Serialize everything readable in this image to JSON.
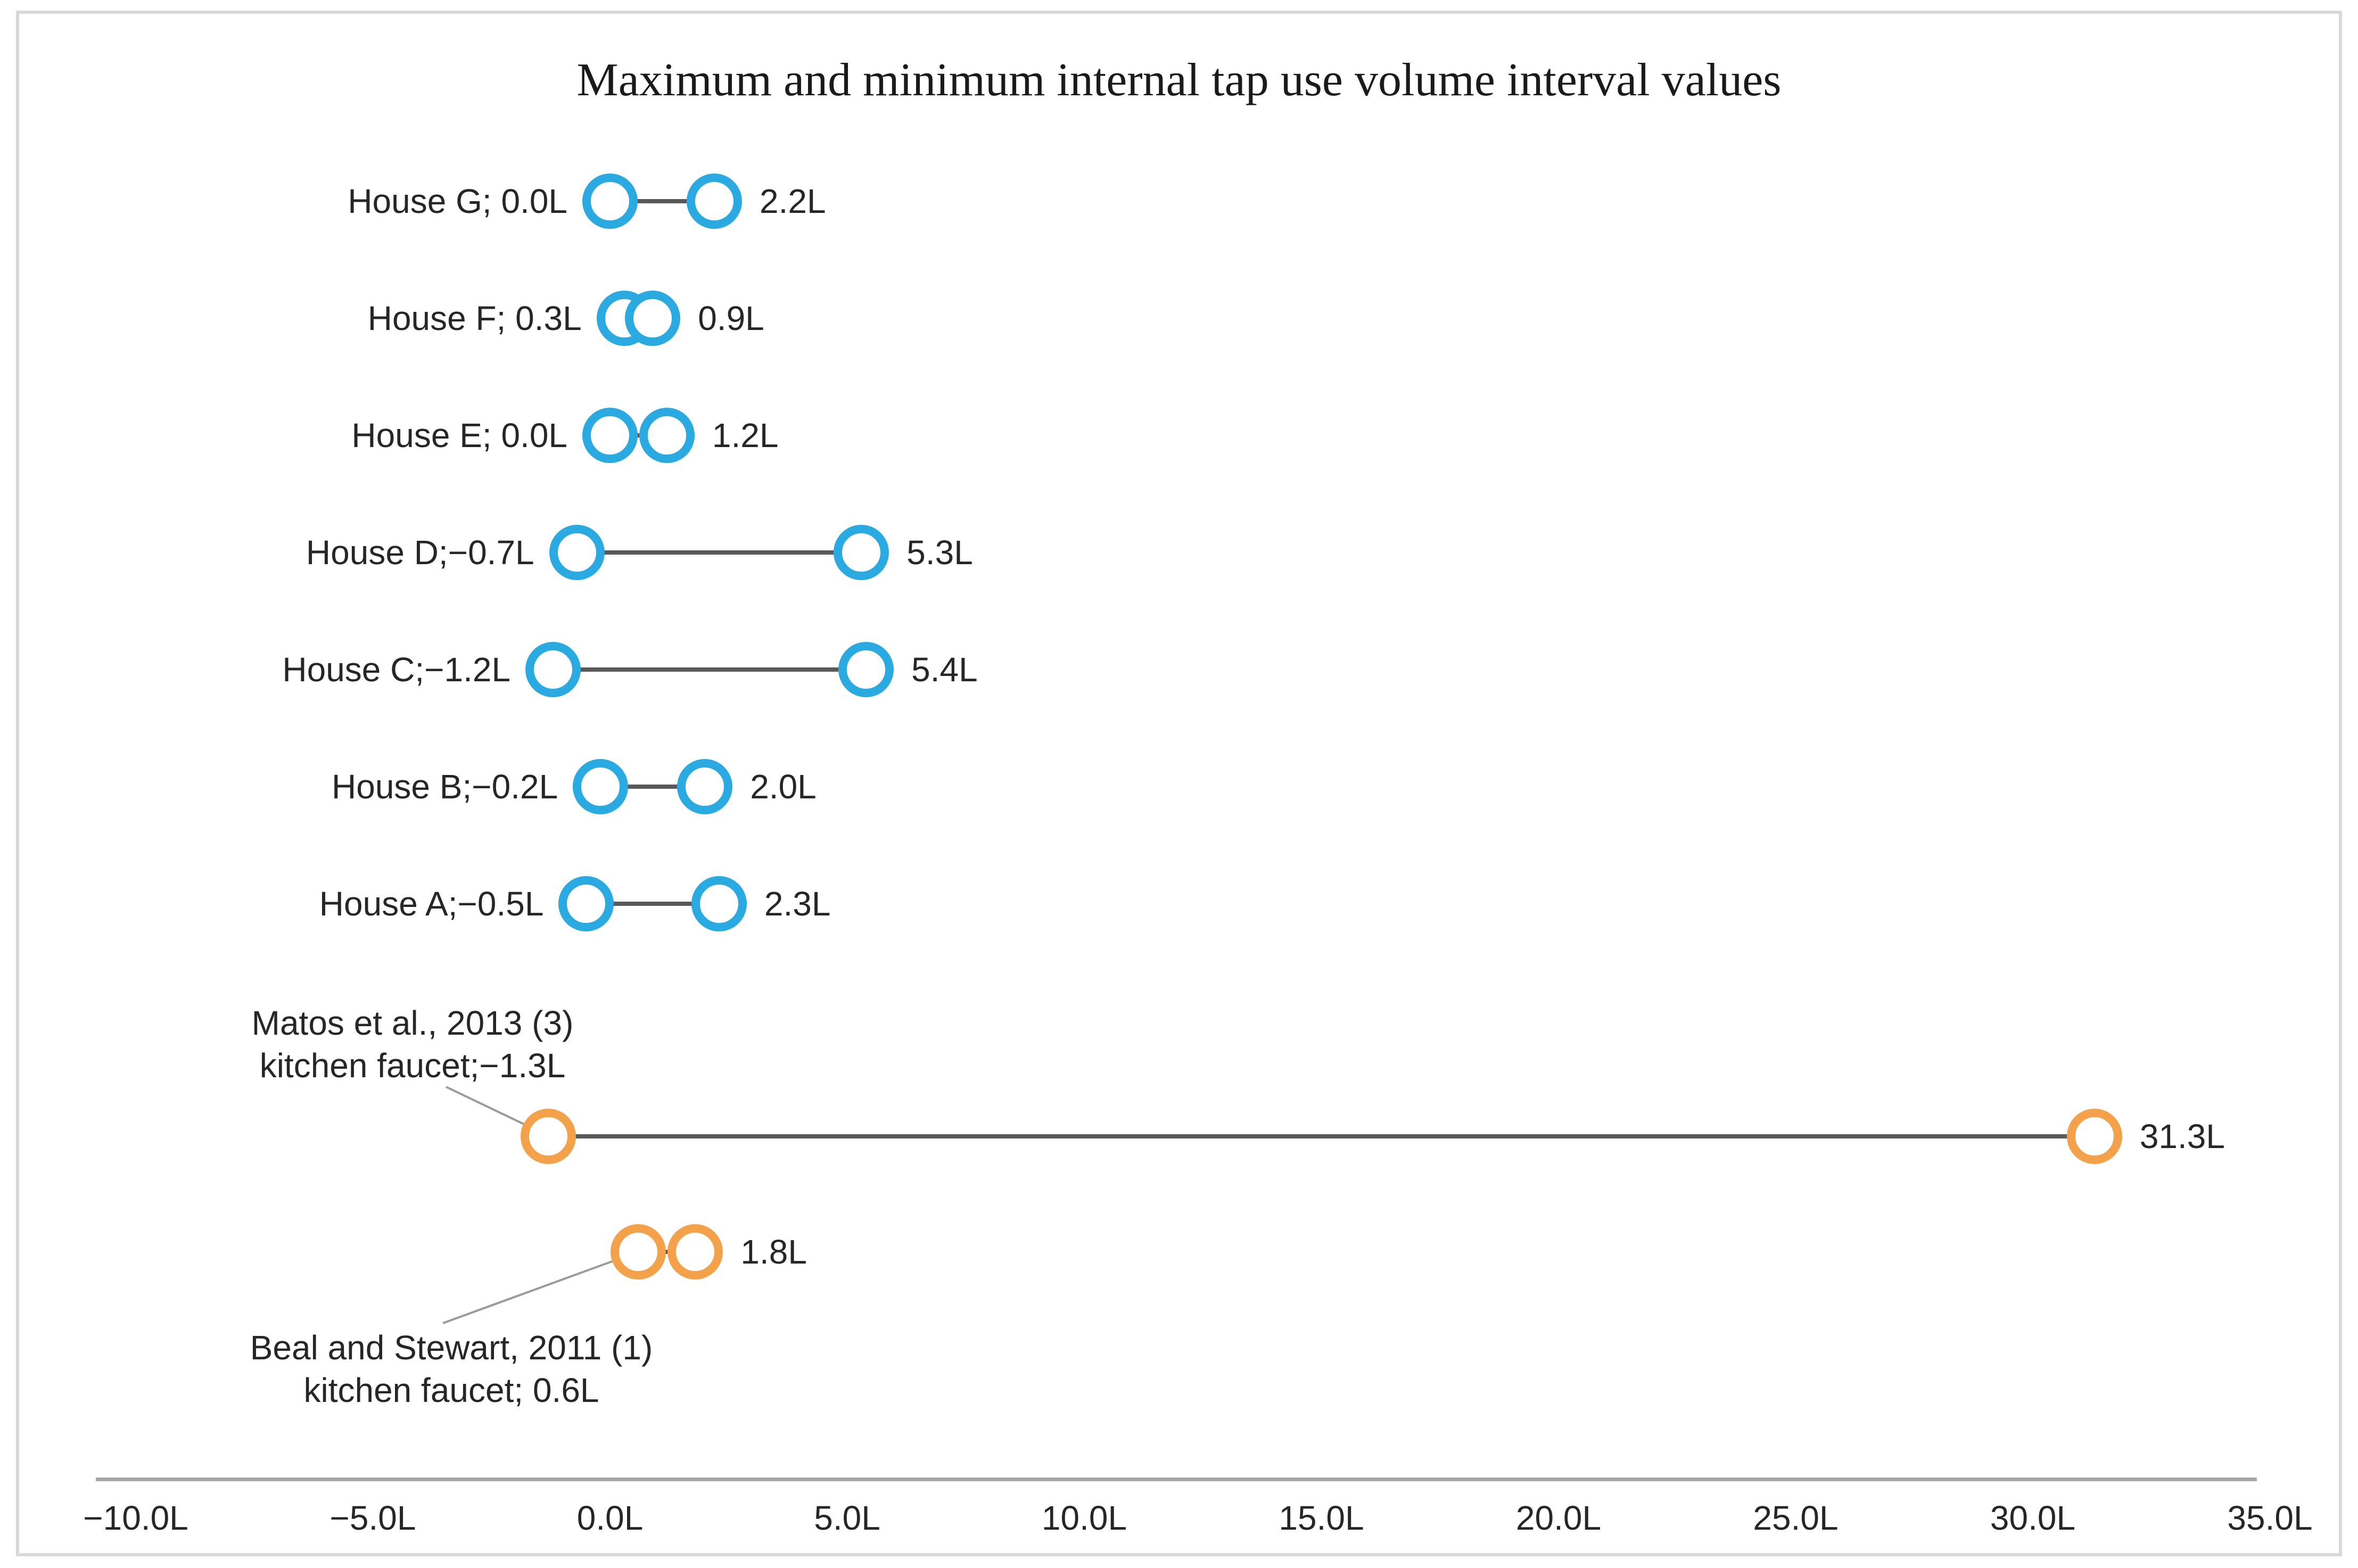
{
  "title": "Maximum and minimum internal tap use volume interval values",
  "chart_data": {
    "type": "scatter",
    "subtype": "dumbbell-range",
    "title": "Maximum and minimum internal tap use volume interval values",
    "unit": "L",
    "xlim": [
      -10,
      35
    ],
    "x_tick_values": [
      -10,
      -5,
      0,
      5,
      10,
      15,
      20,
      25,
      30,
      35
    ],
    "x_tick_labels": [
      "−10.0L",
      "−5.0L",
      "0.0L",
      "5.0L",
      "10.0L",
      "15.0L",
      "20.0L",
      "25.0L",
      "30.0L",
      "35.0L"
    ],
    "legend": "none",
    "grid": "off",
    "series": [
      {
        "name": "House G",
        "label": "House G; 0.0L",
        "min": 0.0,
        "max": 2.2,
        "max_label": "2.2L",
        "color_key": "house"
      },
      {
        "name": "House F",
        "label": "House F; 0.3L",
        "min": 0.3,
        "max": 0.9,
        "max_label": "0.9L",
        "color_key": "house"
      },
      {
        "name": "House E",
        "label": "House E; 0.0L",
        "min": 0.0,
        "max": 1.2,
        "max_label": "1.2L",
        "color_key": "house"
      },
      {
        "name": "House D",
        "label": "House D;−0.7L",
        "min": -0.7,
        "max": 5.3,
        "max_label": "5.3L",
        "color_key": "house"
      },
      {
        "name": "House C",
        "label": "House C;−1.2L",
        "min": -1.2,
        "max": 5.4,
        "max_label": "5.4L",
        "color_key": "house"
      },
      {
        "name": "House B",
        "label": "House B;−0.2L",
        "min": -0.2,
        "max": 2.0,
        "max_label": "2.0L",
        "color_key": "house"
      },
      {
        "name": "House A",
        "label": "House A;−0.5L",
        "min": -0.5,
        "max": 2.3,
        "max_label": "2.3L",
        "color_key": "house"
      },
      {
        "name": "Matos et al., 2013 (3) kitchen faucet",
        "annotation_lines": [
          "Matos et al., 2013 (3)",
          "kitchen faucet;−1.3L"
        ],
        "min": -1.3,
        "max": 31.3,
        "max_label": "31.3L",
        "color_key": "study"
      },
      {
        "name": "Beal and Stewart, 2011 (1) kitchen faucet",
        "annotation_lines": [
          "Beal and Stewart, 2011 (1)",
          "kitchen faucet; 0.6L"
        ],
        "min": 0.6,
        "max": 1.8,
        "max_label": "1.8L",
        "color_key": "study"
      }
    ],
    "colors": {
      "house": "#2BAAE2",
      "study": "#F3A24B",
      "connector": "#595959",
      "leader": "#9B9B9B",
      "axis": "#A6A6A6",
      "text": "#262626",
      "frame": "#D9D9D9"
    }
  }
}
